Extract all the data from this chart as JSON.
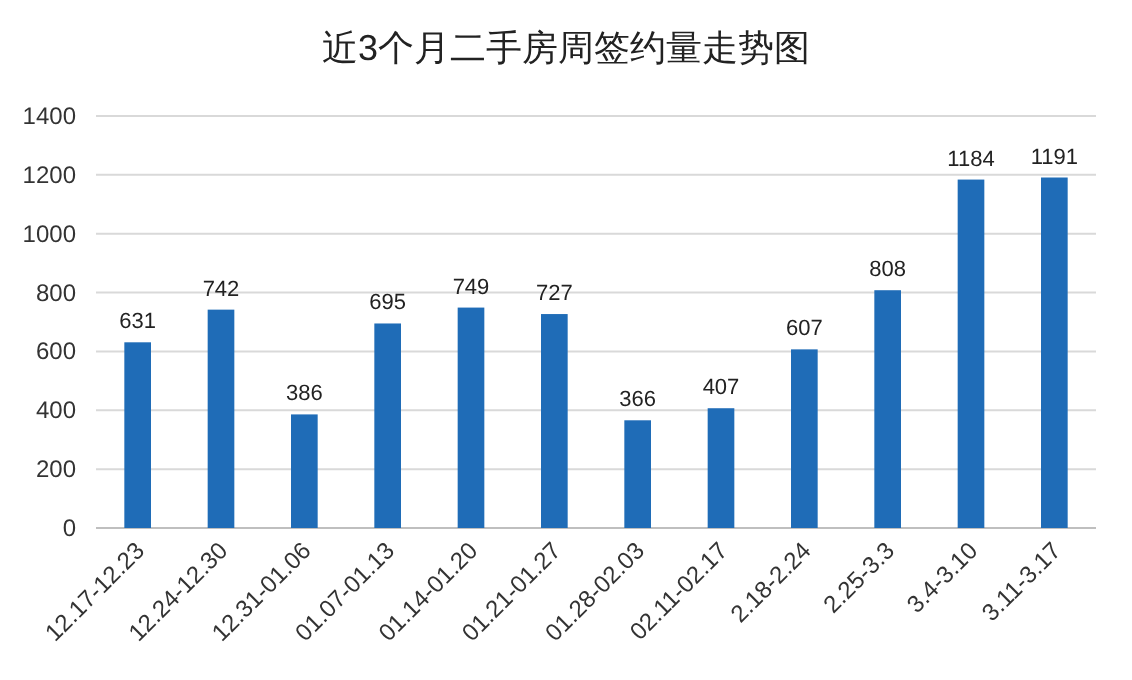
{
  "chart_data": {
    "type": "bar",
    "title": "近3个月二手房周签约量走势图",
    "categories": [
      "12.17-12.23",
      "12.24-12.30",
      "12.31-01.06",
      "01.07-01.13",
      "01.14-01.20",
      "01.21-01.27",
      "01.28-02.03",
      "02.11-02.17",
      "2.18-2.24",
      "2.25-3.3",
      "3.4-3.10",
      "3.11-3.17"
    ],
    "values": [
      631,
      742,
      386,
      695,
      749,
      727,
      366,
      407,
      607,
      808,
      1184,
      1191
    ],
    "color": "#1f6cb7",
    "ylim": [
      0,
      1400
    ],
    "yticks": [
      0,
      200,
      400,
      600,
      800,
      1000,
      1200,
      1400
    ],
    "grid": "y",
    "data_labels": true
  }
}
